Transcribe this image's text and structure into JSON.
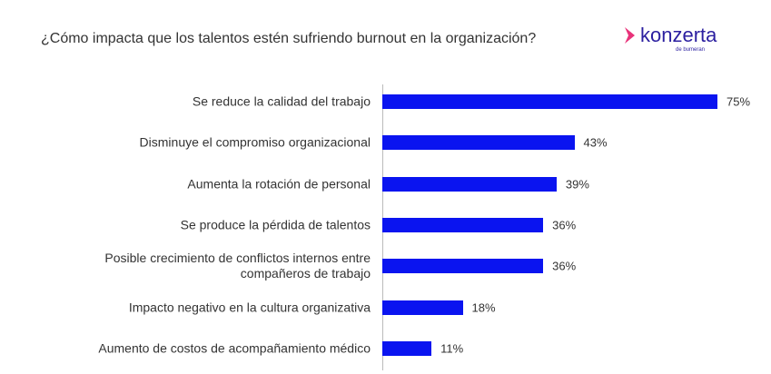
{
  "chart_data": {
    "type": "bar",
    "orientation": "horizontal",
    "title": "¿Cómo impacta que los talentos estén sufriendo burnout en la organización?",
    "categories": [
      "Se reduce la calidad del trabajo",
      "Disminuye el compromiso organizacional",
      "Aumenta la rotación de personal",
      "Se produce la pérdida de talentos",
      "Posible crecimiento de conflictos internos entre compañeros de trabajo",
      "Impacto negativo en la cultura organizativa",
      "Aumento de costos de acompañamiento médico"
    ],
    "values": [
      75,
      43,
      39,
      36,
      36,
      18,
      11
    ],
    "value_labels": [
      "75%",
      "43%",
      "39%",
      "36%",
      "36%",
      "18%",
      "11%"
    ],
    "color": "#0a14f0"
  },
  "logo": {
    "name": "konzerta",
    "tagline": "de bumeran"
  }
}
